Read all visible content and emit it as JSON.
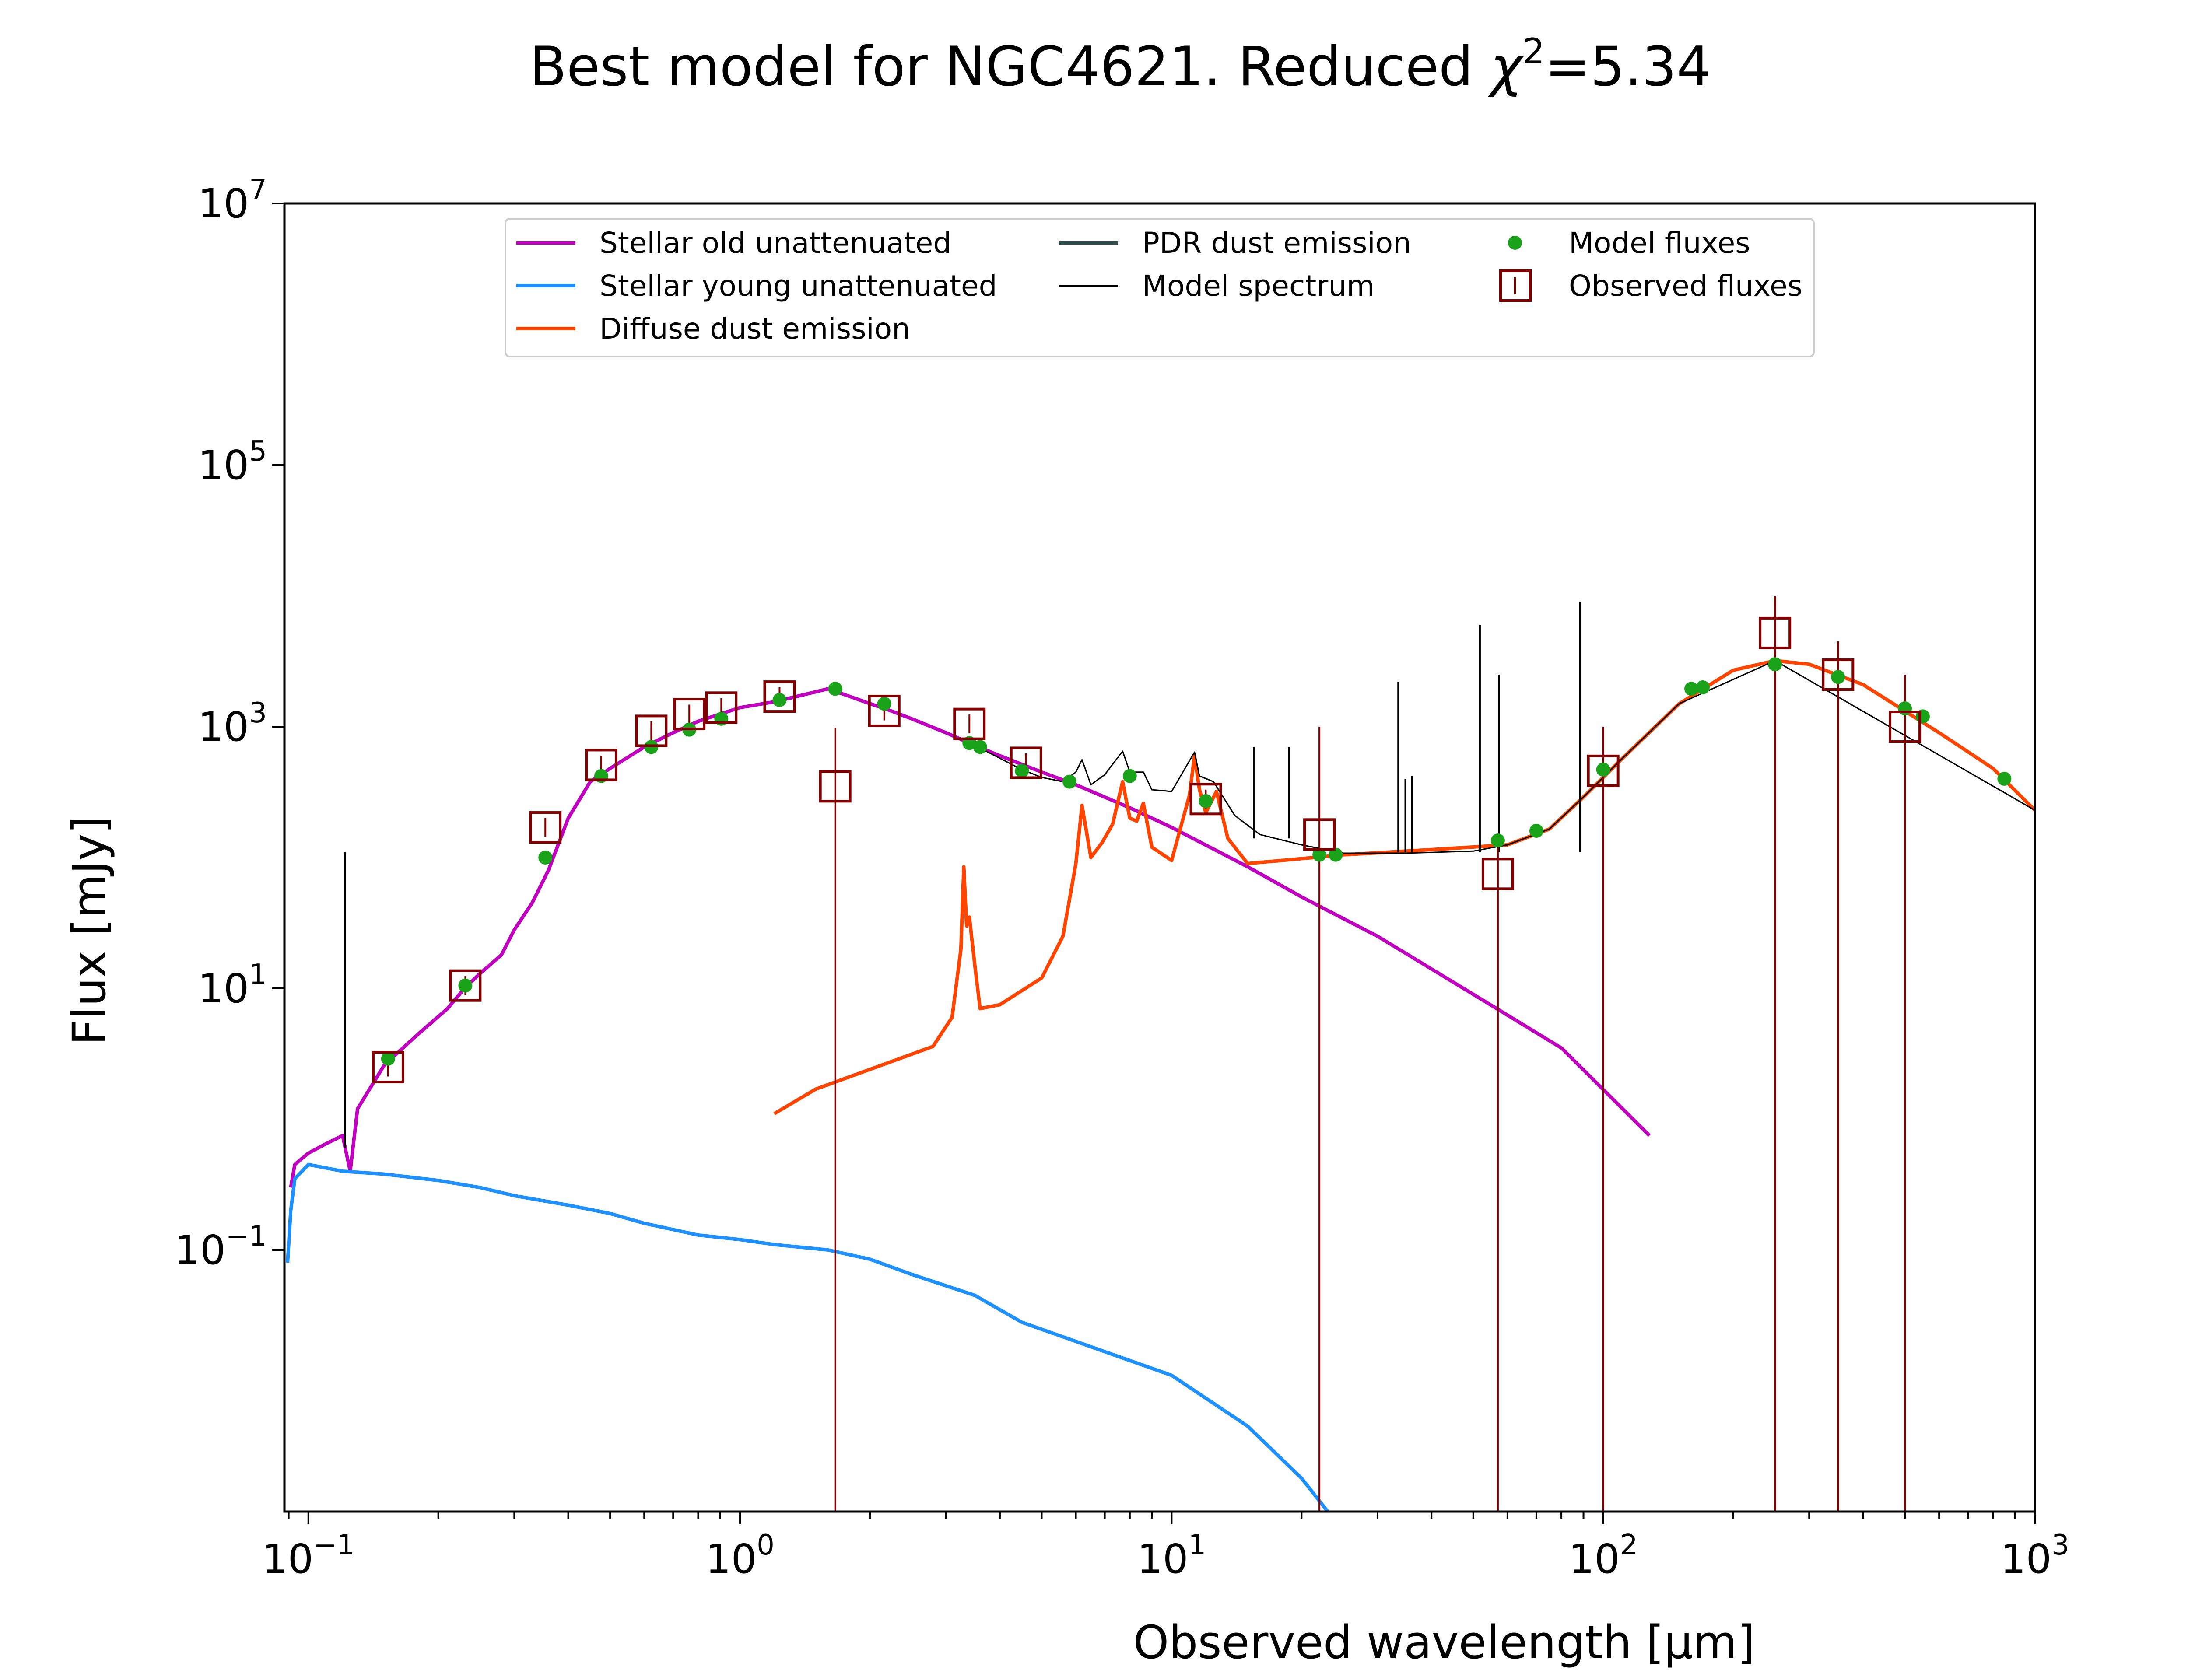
{
  "chart_data": {
    "type": "line",
    "title_main": "Best model for NGC4621. Reduced ",
    "title_chi": "χ",
    "title_chi_sup": "2",
    "title_tail": "=5.34",
    "xlabel": "Observed wavelength [μm]",
    "ylabel": "Flux [mJy]",
    "xscale": "log",
    "yscale": "log",
    "xlim": [
      0.088,
      1000
    ],
    "ylim": [
      0.001,
      10000000
    ],
    "x_ticks": [
      {
        "value": 0.1,
        "base": "10",
        "exp": "−1"
      },
      {
        "value": 1,
        "base": "10",
        "exp": "0"
      },
      {
        "value": 10,
        "base": "10",
        "exp": "1"
      },
      {
        "value": 100,
        "base": "10",
        "exp": "2"
      },
      {
        "value": 1000,
        "base": "10",
        "exp": "3"
      }
    ],
    "y_ticks": [
      {
        "value": 0.1,
        "base": "10",
        "exp": "−1"
      },
      {
        "value": 10,
        "base": "10",
        "exp": "1"
      },
      {
        "value": 1000,
        "base": "10",
        "exp": "3"
      },
      {
        "value": 100000,
        "base": "10",
        "exp": "5"
      },
      {
        "value": 10000000,
        "base": "10",
        "exp": "7"
      }
    ],
    "grid": false,
    "legend_position": "top",
    "colors": {
      "stellar_old": "#bf00bf",
      "stellar_young": "#1e90ff",
      "diffuse_dust": "#ff4500",
      "pdr_dust": "#2f4f4f",
      "model_spectrum": "#000000",
      "model_fluxes": "#1aa31a",
      "observed_fluxes": "#800000"
    },
    "series": [
      {
        "name": "Stellar old unattenuated",
        "key": "stellar_old",
        "points": [
          [
            0.091,
            0.3
          ],
          [
            0.093,
            0.45
          ],
          [
            0.1,
            0.55
          ],
          [
            0.11,
            0.65
          ],
          [
            0.12,
            0.75
          ],
          [
            0.125,
            0.4
          ],
          [
            0.13,
            1.2
          ],
          [
            0.15,
            2.6
          ],
          [
            0.18,
            4.5
          ],
          [
            0.21,
            7
          ],
          [
            0.23,
            10
          ],
          [
            0.25,
            13
          ],
          [
            0.28,
            18
          ],
          [
            0.3,
            28
          ],
          [
            0.33,
            45
          ],
          [
            0.36,
            80
          ],
          [
            0.4,
            200
          ],
          [
            0.45,
            380
          ],
          [
            0.5,
            480
          ],
          [
            0.6,
            700
          ],
          [
            0.7,
            900
          ],
          [
            0.8,
            1100
          ],
          [
            0.9,
            1250
          ],
          [
            1.0,
            1400
          ],
          [
            1.2,
            1550
          ],
          [
            1.4,
            1750
          ],
          [
            1.6,
            1950
          ],
          [
            1.8,
            1700
          ],
          [
            2.0,
            1500
          ],
          [
            2.2,
            1350
          ],
          [
            2.5,
            1150
          ],
          [
            3.0,
            900
          ],
          [
            3.5,
            720
          ],
          [
            4.0,
            600
          ],
          [
            5.0,
            450
          ],
          [
            6.0,
            360
          ],
          [
            8.0,
            240
          ],
          [
            10,
            170
          ],
          [
            15,
            85
          ],
          [
            20,
            50
          ],
          [
            30,
            25
          ],
          [
            50,
            9
          ],
          [
            80,
            3.5
          ],
          [
            128,
            0.75
          ]
        ]
      },
      {
        "name": "Stellar young unattenuated",
        "key": "stellar_young",
        "points": [
          [
            0.0895,
            0.08
          ],
          [
            0.091,
            0.2
          ],
          [
            0.093,
            0.35
          ],
          [
            0.1,
            0.45
          ],
          [
            0.12,
            0.4
          ],
          [
            0.15,
            0.38
          ],
          [
            0.2,
            0.34
          ],
          [
            0.25,
            0.3
          ],
          [
            0.3,
            0.26
          ],
          [
            0.4,
            0.22
          ],
          [
            0.5,
            0.19
          ],
          [
            0.6,
            0.16
          ],
          [
            0.8,
            0.13
          ],
          [
            1.0,
            0.12
          ],
          [
            1.2,
            0.11
          ],
          [
            1.6,
            0.1
          ],
          [
            2.0,
            0.085
          ],
          [
            2.5,
            0.065
          ],
          [
            3.5,
            0.045
          ],
          [
            4.5,
            0.028
          ],
          [
            6.0,
            0.02
          ],
          [
            10,
            0.011
          ],
          [
            15,
            0.0045
          ],
          [
            20,
            0.0018
          ],
          [
            23,
            0.001
          ]
        ]
      },
      {
        "name": "Diffuse dust emission",
        "key": "diffuse_dust",
        "points": [
          [
            1.2,
            1.1
          ],
          [
            1.5,
            1.7
          ],
          [
            2.0,
            2.4
          ],
          [
            2.8,
            3.6
          ],
          [
            3.1,
            6
          ],
          [
            3.25,
            20
          ],
          [
            3.3,
            85
          ],
          [
            3.35,
            30
          ],
          [
            3.4,
            35
          ],
          [
            3.5,
            15
          ],
          [
            3.6,
            7
          ],
          [
            4.0,
            7.5
          ],
          [
            5.0,
            12
          ],
          [
            5.6,
            25
          ],
          [
            6.0,
            90
          ],
          [
            6.2,
            250
          ],
          [
            6.5,
            100
          ],
          [
            6.9,
            130
          ],
          [
            7.3,
            180
          ],
          [
            7.7,
            380
          ],
          [
            8.0,
            200
          ],
          [
            8.3,
            190
          ],
          [
            8.6,
            260
          ],
          [
            9.0,
            120
          ],
          [
            10,
            95
          ],
          [
            11.0,
            300
          ],
          [
            11.3,
            600
          ],
          [
            11.6,
            330
          ],
          [
            12.0,
            220
          ],
          [
            12.7,
            320
          ],
          [
            13.5,
            140
          ],
          [
            15,
            90
          ],
          [
            18,
            95
          ],
          [
            25,
            105
          ],
          [
            40,
            115
          ],
          [
            60,
            125
          ],
          [
            75,
            165
          ],
          [
            90,
            290
          ],
          [
            110,
            560
          ],
          [
            150,
            1500
          ],
          [
            200,
            2700
          ],
          [
            250,
            3200
          ],
          [
            300,
            3000
          ],
          [
            400,
            2100
          ],
          [
            600,
            900
          ],
          [
            800,
            480
          ],
          [
            1000,
            230
          ]
        ]
      },
      {
        "name": "PDR dust emission",
        "key": "pdr_dust",
        "points": []
      },
      {
        "name": "Model spectrum",
        "key": "model_spectrum",
        "points": [
          [
            3.5,
            720
          ],
          [
            4.5,
            470
          ],
          [
            5.0,
            410
          ],
          [
            5.6,
            380
          ],
          [
            6.0,
            450
          ],
          [
            6.2,
            560
          ],
          [
            6.5,
            360
          ],
          [
            7.0,
            430
          ],
          [
            7.7,
            650
          ],
          [
            8.0,
            450
          ],
          [
            8.6,
            450
          ],
          [
            9.0,
            330
          ],
          [
            10,
            320
          ],
          [
            11.3,
            640
          ],
          [
            11.6,
            420
          ],
          [
            12.5,
            380
          ],
          [
            14,
            210
          ],
          [
            16,
            150
          ],
          [
            20,
            125
          ],
          [
            25,
            108
          ],
          [
            35,
            108
          ],
          [
            50,
            112
          ],
          [
            60,
            125
          ],
          [
            75,
            165
          ],
          [
            90,
            290
          ],
          [
            110,
            560
          ],
          [
            150,
            1500
          ],
          [
            250,
            3200
          ],
          [
            1000,
            230
          ]
        ],
        "spikes": [
          [
            0.1216,
            110
          ],
          [
            15.5,
            700
          ],
          [
            18.7,
            700
          ],
          [
            33.5,
            2200
          ],
          [
            34.8,
            400
          ],
          [
            36,
            420
          ],
          [
            51.8,
            6000
          ],
          [
            57.3,
            2500
          ],
          [
            88.4,
            9000
          ]
        ]
      }
    ],
    "model_fluxes": [
      [
        0.153,
        2.9
      ],
      [
        0.231,
        10.5
      ],
      [
        0.354,
        100
      ],
      [
        0.477,
        420
      ],
      [
        0.623,
        700
      ],
      [
        0.763,
        950
      ],
      [
        0.905,
        1150
      ],
      [
        1.235,
        1600
      ],
      [
        1.662,
        1950
      ],
      [
        2.159,
        1500
      ],
      [
        3.4,
        750
      ],
      [
        3.6,
        700
      ],
      [
        4.5,
        460
      ],
      [
        5.8,
        380
      ],
      [
        8.0,
        420
      ],
      [
        12,
        270
      ],
      [
        22,
        105
      ],
      [
        24,
        105
      ],
      [
        57,
        135
      ],
      [
        70,
        160
      ],
      [
        100,
        470
      ],
      [
        160,
        1950
      ],
      [
        170,
        2000
      ],
      [
        250,
        3000
      ],
      [
        350,
        2400
      ],
      [
        500,
        1380
      ],
      [
        550,
        1200
      ],
      [
        850,
        400
      ]
    ],
    "observed_fluxes": [
      {
        "x": 0.153,
        "y": 2.5
      },
      {
        "x": 0.231,
        "y": 10.5
      },
      {
        "x": 0.354,
        "y": 170
      },
      {
        "x": 0.477,
        "y": 510
      },
      {
        "x": 0.623,
        "y": 930
      },
      {
        "x": 0.763,
        "y": 1250
      },
      {
        "x": 0.905,
        "y": 1400
      },
      {
        "x": 1.235,
        "y": 1700
      },
      {
        "x": 1.662,
        "y": 350,
        "yerr_top": 980
      },
      {
        "x": 2.159,
        "y": 1320
      },
      {
        "x": 3.4,
        "y": 1050
      },
      {
        "x": 4.6,
        "y": 530
      },
      {
        "x": 12,
        "y": 280
      },
      {
        "x": 22,
        "y": 150,
        "yerr_top": 1000
      },
      {
        "x": 57,
        "y": 75,
        "yerr_top": 130
      },
      {
        "x": 100,
        "y": 460,
        "yerr_top": 1000
      },
      {
        "x": 250,
        "y": 5200,
        "yerr_top": 10000
      },
      {
        "x": 350,
        "y": 2500,
        "yerr_top": 4500
      },
      {
        "x": 500,
        "y": 1000,
        "yerr_top": 2500
      }
    ],
    "legend": [
      {
        "label": "Stellar old unattenuated",
        "key": "stellar_old",
        "kind": "line"
      },
      {
        "label": "Stellar young unattenuated",
        "key": "stellar_young",
        "kind": "line"
      },
      {
        "label": "Diffuse dust emission",
        "key": "diffuse_dust",
        "kind": "line"
      },
      {
        "label": "PDR dust emission",
        "key": "pdr_dust",
        "kind": "line"
      },
      {
        "label": "Model spectrum",
        "key": "model_spectrum",
        "kind": "thin-line"
      },
      {
        "label": "Model fluxes",
        "key": "model_fluxes",
        "kind": "dot"
      },
      {
        "label": "Observed fluxes",
        "key": "observed_fluxes",
        "kind": "square"
      }
    ]
  }
}
